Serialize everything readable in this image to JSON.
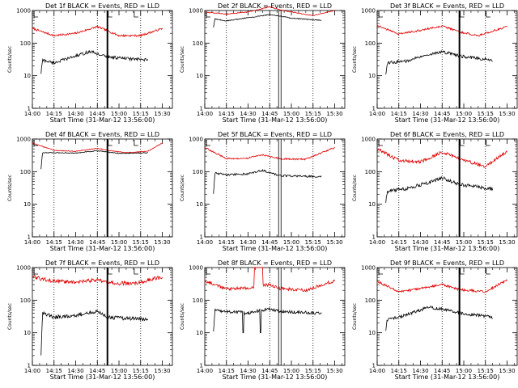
{
  "chart_data": [
    {
      "type": "line",
      "title": "Det 1f BLACK = Events, RED = LLD",
      "xlabel": "Start Time (31-Mar-12 13:56:00)",
      "ylabel": "Counts/sec",
      "log_y": true,
      "ylim": [
        1,
        1000
      ],
      "xlim": [
        "14:00",
        "15:37"
      ],
      "xticks": [
        "14:00",
        "14:15",
        "14:30",
        "14:45",
        "15:00",
        "15:15",
        "15:30"
      ],
      "yticks": [
        "1",
        "10",
        "100",
        "1000"
      ],
      "dotted_lines": [
        "14:15",
        "14:45",
        "15:15"
      ],
      "solid_line": "14:52",
      "double_line": null,
      "flags": [
        "14:52",
        "15:10"
      ],
      "series": [
        {
          "name": "LLD",
          "color": "#e00000",
          "t_start": "14:00",
          "t_end": "15:30",
          "points": [
            [
              "14:00",
              280
            ],
            [
              "14:15",
              170
            ],
            [
              "14:30",
              200
            ],
            [
              "14:45",
              320
            ],
            [
              "14:52",
              240
            ],
            [
              "15:00",
              170
            ],
            [
              "15:15",
              170
            ],
            [
              "15:30",
              280
            ]
          ],
          "noise": 0.05,
          "steps": []
        },
        {
          "name": "Events",
          "color": "#000000",
          "t_start": "14:06",
          "t_end": "15:20",
          "points": [
            [
              "14:06",
              12
            ],
            [
              "14:07",
              30
            ],
            [
              "14:15",
              25
            ],
            [
              "14:30",
              40
            ],
            [
              "14:40",
              55
            ],
            [
              "14:50",
              40
            ],
            [
              "15:00",
              35
            ],
            [
              "15:20",
              30
            ]
          ],
          "noise": 0.08,
          "steps": []
        }
      ]
    },
    {
      "type": "line",
      "title": "Det 2f BLACK = Events, RED = LLD",
      "xlabel": "Start Time (31-Mar-12 13:56:00)",
      "ylabel": "Counts/sec",
      "log_y": true,
      "ylim": [
        1,
        1000
      ],
      "xlim": [
        "14:00",
        "15:37"
      ],
      "xticks": [
        "14:00",
        "14:15",
        "14:30",
        "14:45",
        "15:00",
        "15:15",
        "15:30"
      ],
      "yticks": [
        "1",
        "10",
        "100",
        "1000"
      ],
      "dotted_lines": [
        "14:15",
        "14:45",
        "15:15"
      ],
      "solid_line": null,
      "double_line": "14:52",
      "flags": [],
      "series": [
        {
          "name": "LLD",
          "color": "#e00000",
          "t_start": "14:00",
          "t_end": "15:30",
          "points": [
            [
              "14:00",
              900
            ],
            [
              "14:15",
              780
            ],
            [
              "14:30",
              900
            ],
            [
              "14:45",
              1300
            ],
            [
              "14:52",
              1050
            ],
            [
              "15:00",
              900
            ],
            [
              "15:15",
              700
            ],
            [
              "15:30",
              1000
            ]
          ],
          "noise": 0.02,
          "steps": []
        },
        {
          "name": "Events",
          "color": "#000000",
          "t_start": "14:06",
          "t_end": "15:21",
          "points": [
            [
              "14:06",
              300
            ],
            [
              "14:07",
              550
            ],
            [
              "14:15",
              480
            ],
            [
              "14:30",
              600
            ],
            [
              "14:45",
              750
            ],
            [
              "14:52",
              680
            ],
            [
              "15:00",
              580
            ],
            [
              "15:21",
              500
            ]
          ],
          "noise": 0.02,
          "steps": []
        }
      ]
    },
    {
      "type": "line",
      "title": "Det 3f BLACK = Events, RED = LLD",
      "xlabel": "Start Time (31-Mar-12 13:56:00)",
      "ylabel": "Counts/sec",
      "log_y": true,
      "ylim": [
        1,
        1000
      ],
      "xlim": [
        "14:00",
        "15:37"
      ],
      "xticks": [
        "14:00",
        "14:15",
        "14:30",
        "14:45",
        "15:00",
        "15:15",
        "15:30"
      ],
      "yticks": [
        "1",
        "10",
        "100",
        "1000"
      ],
      "dotted_lines": [
        "14:15",
        "14:45",
        "15:15"
      ],
      "solid_line": "14:57",
      "double_line": null,
      "flags": [
        "14:57",
        "15:15"
      ],
      "series": [
        {
          "name": "LLD",
          "color": "#e00000",
          "t_start": "14:00",
          "t_end": "15:30",
          "points": [
            [
              "14:00",
              350
            ],
            [
              "14:15",
              190
            ],
            [
              "14:30",
              250
            ],
            [
              "14:45",
              340
            ],
            [
              "14:57",
              220
            ],
            [
              "15:10",
              170
            ],
            [
              "15:30",
              320
            ]
          ],
          "noise": 0.05,
          "steps": []
        },
        {
          "name": "Events",
          "color": "#000000",
          "t_start": "14:06",
          "t_end": "15:20",
          "points": [
            [
              "14:06",
              12
            ],
            [
              "14:07",
              25
            ],
            [
              "14:20",
              28
            ],
            [
              "14:35",
              45
            ],
            [
              "14:45",
              55
            ],
            [
              "14:57",
              40
            ],
            [
              "15:20",
              30
            ]
          ],
          "noise": 0.08,
          "steps": []
        }
      ]
    },
    {
      "type": "line",
      "title": "Det 4f BLACK = Events, RED = LLD",
      "xlabel": "Start Time (31-Mar-12 13:56:00)",
      "ylabel": "Counts/sec",
      "log_y": true,
      "ylim": [
        1,
        1000
      ],
      "xlim": [
        "14:00",
        "15:37"
      ],
      "xticks": [
        "14:00",
        "14:15",
        "14:30",
        "14:45",
        "15:00",
        "15:15",
        "15:30"
      ],
      "yticks": [
        "1",
        "10",
        "100",
        "1000"
      ],
      "dotted_lines": [
        "14:15",
        "14:45",
        "15:15"
      ],
      "solid_line": "14:52",
      "double_line": null,
      "flags": [
        "14:52",
        "15:10"
      ],
      "series": [
        {
          "name": "LLD",
          "color": "#e00000",
          "t_start": "14:00",
          "t_end": "15:30",
          "points": [
            [
              "14:00",
              750
            ],
            [
              "14:15",
              450
            ],
            [
              "14:30",
              420
            ],
            [
              "14:45",
              520
            ],
            [
              "14:52",
              450
            ],
            [
              "15:05",
              380
            ],
            [
              "15:20",
              420
            ],
            [
              "15:30",
              750
            ]
          ],
          "noise": 0.02,
          "steps": []
        },
        {
          "name": "Events",
          "color": "#000000",
          "t_start": "14:06",
          "t_end": "15:20",
          "points": [
            [
              "14:06",
              120
            ],
            [
              "14:07",
              380
            ],
            [
              "14:15",
              380
            ],
            [
              "14:30",
              370
            ],
            [
              "14:45",
              440
            ],
            [
              "15:00",
              360
            ],
            [
              "15:20",
              380
            ]
          ],
          "noise": 0.02,
          "steps": []
        }
      ]
    },
    {
      "type": "line",
      "title": "Det 5f BLACK = Events, RED = LLD",
      "xlabel": "Start Time (31-Mar-12 13:56:00)",
      "ylabel": "Counts/sec",
      "log_y": true,
      "ylim": [
        1,
        1000
      ],
      "xlim": [
        "14:00",
        "15:37"
      ],
      "xticks": [
        "14:00",
        "14:15",
        "14:30",
        "14:45",
        "15:00",
        "15:15",
        "15:30"
      ],
      "yticks": [
        "1",
        "10",
        "100",
        "1000"
      ],
      "dotted_lines": [
        "14:15",
        "14:45",
        "15:15"
      ],
      "solid_line": null,
      "double_line": "14:52",
      "flags": [],
      "series": [
        {
          "name": "LLD",
          "color": "#e00000",
          "t_start": "14:00",
          "t_end": "15:30",
          "points": [
            [
              "14:00",
              550
            ],
            [
              "14:15",
              250
            ],
            [
              "14:30",
              260
            ],
            [
              "14:40",
              330
            ],
            [
              "14:52",
              250
            ],
            [
              "15:10",
              240
            ],
            [
              "15:30",
              550
            ]
          ],
          "noise": 0.04,
          "steps": []
        },
        {
          "name": "Events",
          "color": "#000000",
          "t_start": "14:06",
          "t_end": "15:21",
          "points": [
            [
              "14:06",
              20
            ],
            [
              "14:07",
              90
            ],
            [
              "14:15",
              80
            ],
            [
              "14:30",
              85
            ],
            [
              "14:40",
              110
            ],
            [
              "14:52",
              75
            ],
            [
              "15:21",
              70
            ]
          ],
          "noise": 0.05,
          "steps": []
        }
      ]
    },
    {
      "type": "line",
      "title": "Det 6f BLACK = Events, RED = LLD",
      "xlabel": "Start Time (31-Mar-12 13:56:00)",
      "ylabel": "Counts/sec",
      "log_y": true,
      "ylim": [
        1,
        1000
      ],
      "xlim": [
        "14:00",
        "15:37"
      ],
      "xticks": [
        "14:00",
        "14:15",
        "14:30",
        "14:45",
        "15:00",
        "15:15",
        "15:30"
      ],
      "yticks": [
        "1",
        "10",
        "100",
        "1000"
      ],
      "dotted_lines": [
        "14:15",
        "14:45",
        "15:15"
      ],
      "solid_line": "14:57",
      "double_line": null,
      "flags": [
        "14:57",
        "15:15"
      ],
      "series": [
        {
          "name": "LLD",
          "color": "#e00000",
          "t_start": "14:00",
          "t_end": "15:30",
          "points": [
            [
              "14:00",
              500
            ],
            [
              "14:15",
              220
            ],
            [
              "14:30",
              200
            ],
            [
              "14:45",
              400
            ],
            [
              "14:57",
              250
            ],
            [
              "15:15",
              140
            ],
            [
              "15:30",
              420
            ]
          ],
          "noise": 0.08,
          "steps": []
        },
        {
          "name": "Events",
          "color": "#000000",
          "t_start": "14:06",
          "t_end": "15:20",
          "points": [
            [
              "14:06",
              12
            ],
            [
              "14:07",
              25
            ],
            [
              "14:20",
              30
            ],
            [
              "14:35",
              45
            ],
            [
              "14:45",
              65
            ],
            [
              "14:57",
              40
            ],
            [
              "15:20",
              30
            ]
          ],
          "noise": 0.09,
          "steps": []
        }
      ]
    },
    {
      "type": "line",
      "title": "Det 7f BLACK = Events, RED = LLD",
      "xlabel": "Start Time (31-Mar-12 13:56:00)",
      "ylabel": "Counts/sec",
      "log_y": true,
      "ylim": [
        1,
        1000
      ],
      "xlim": [
        "14:00",
        "15:37"
      ],
      "xticks": [
        "14:00",
        "14:15",
        "14:30",
        "14:45",
        "15:00",
        "15:15",
        "15:30"
      ],
      "yticks": [
        "1",
        "10",
        "100",
        "1000"
      ],
      "dotted_lines": [
        "14:15",
        "14:45",
        "15:15"
      ],
      "solid_line": "14:52",
      "double_line": null,
      "flags": [
        "14:52",
        "15:10"
      ],
      "series": [
        {
          "name": "LLD",
          "color": "#e00000",
          "t_start": "14:00",
          "t_end": "15:30",
          "points": [
            [
              "14:00",
              520
            ],
            [
              "14:15",
              380
            ],
            [
              "14:30",
              360
            ],
            [
              "14:45",
              420
            ],
            [
              "14:52",
              340
            ],
            [
              "15:10",
              320
            ],
            [
              "15:30",
              520
            ]
          ],
          "noise": 0.1,
          "steps": []
        },
        {
          "name": "Events",
          "color": "#000000",
          "t_start": "14:06",
          "t_end": "15:20",
          "points": [
            [
              "14:06",
              2
            ],
            [
              "14:07",
              40
            ],
            [
              "14:15",
              30
            ],
            [
              "14:30",
              35
            ],
            [
              "14:45",
              45
            ],
            [
              "14:52",
              30
            ],
            [
              "15:20",
              25
            ]
          ],
          "noise": 0.1,
          "steps": []
        }
      ]
    },
    {
      "type": "line",
      "title": "Det 8f BLACK = Events, RED = LLD",
      "xlabel": "Start Time (31-Mar-12 13:56:00)",
      "ylabel": "Counts/sec",
      "log_y": true,
      "ylim": [
        1,
        1000
      ],
      "xlim": [
        "14:00",
        "15:37"
      ],
      "xticks": [
        "14:00",
        "14:15",
        "14:30",
        "14:45",
        "15:00",
        "15:15",
        "15:30"
      ],
      "yticks": [
        "1",
        "10",
        "100",
        "1000"
      ],
      "dotted_lines": [
        "14:15",
        "14:45",
        "15:15"
      ],
      "solid_line": null,
      "double_line": "14:52",
      "flags": [],
      "series": [
        {
          "name": "LLD",
          "color": "#e00000",
          "t_start": "14:00",
          "t_end": "15:30",
          "points": [
            [
              "14:00",
              400
            ],
            [
              "14:15",
              220
            ],
            [
              "14:30",
              240
            ],
            [
              "14:45",
              300
            ],
            [
              "14:52",
              230
            ],
            [
              "15:10",
              200
            ],
            [
              "15:30",
              400
            ]
          ],
          "noise": 0.08,
          "steps": [
            [
              "14:34",
              "14:40",
              1000
            ]
          ]
        },
        {
          "name": "Events",
          "color": "#000000",
          "t_start": "14:06",
          "t_end": "15:21",
          "points": [
            [
              "14:06",
              10
            ],
            [
              "14:07",
              50
            ],
            [
              "14:15",
              45
            ],
            [
              "14:30",
              40
            ],
            [
              "14:45",
              55
            ],
            [
              "14:52",
              45
            ],
            [
              "15:21",
              40
            ]
          ],
          "noise": 0.08,
          "steps": [
            [
              "14:26",
              "14:27",
              10
            ],
            [
              "14:38",
              "14:39",
              10
            ]
          ]
        }
      ]
    },
    {
      "type": "line",
      "title": "Det 9f BLACK = Events, RED = LLD",
      "xlabel": "Start Time (31-Mar-12 13:56:00)",
      "ylabel": "Counts/sec",
      "log_y": true,
      "ylim": [
        1,
        1000
      ],
      "xlim": [
        "14:00",
        "15:37"
      ],
      "xticks": [
        "14:00",
        "14:15",
        "14:30",
        "14:45",
        "15:00",
        "15:15",
        "15:30"
      ],
      "yticks": [
        "1",
        "10",
        "100",
        "1000"
      ],
      "dotted_lines": [
        "14:15",
        "14:45",
        "15:15"
      ],
      "solid_line": "14:57",
      "double_line": null,
      "flags": [
        "14:57",
        "15:15"
      ],
      "series": [
        {
          "name": "LLD",
          "color": "#e00000",
          "t_start": "14:00",
          "t_end": "15:30",
          "points": [
            [
              "14:00",
              380
            ],
            [
              "14:15",
              180
            ],
            [
              "14:30",
              230
            ],
            [
              "14:45",
              300
            ],
            [
              "14:57",
              210
            ],
            [
              "15:15",
              180
            ],
            [
              "15:30",
              420
            ]
          ],
          "noise": 0.06,
          "steps": []
        },
        {
          "name": "Events",
          "color": "#000000",
          "t_start": "14:06",
          "t_end": "15:20",
          "points": [
            [
              "14:06",
              12
            ],
            [
              "14:07",
              25
            ],
            [
              "14:20",
              35
            ],
            [
              "14:35",
              60
            ],
            [
              "14:45",
              55
            ],
            [
              "14:57",
              40
            ],
            [
              "15:20",
              30
            ]
          ],
          "noise": 0.08,
          "steps": []
        }
      ]
    }
  ]
}
